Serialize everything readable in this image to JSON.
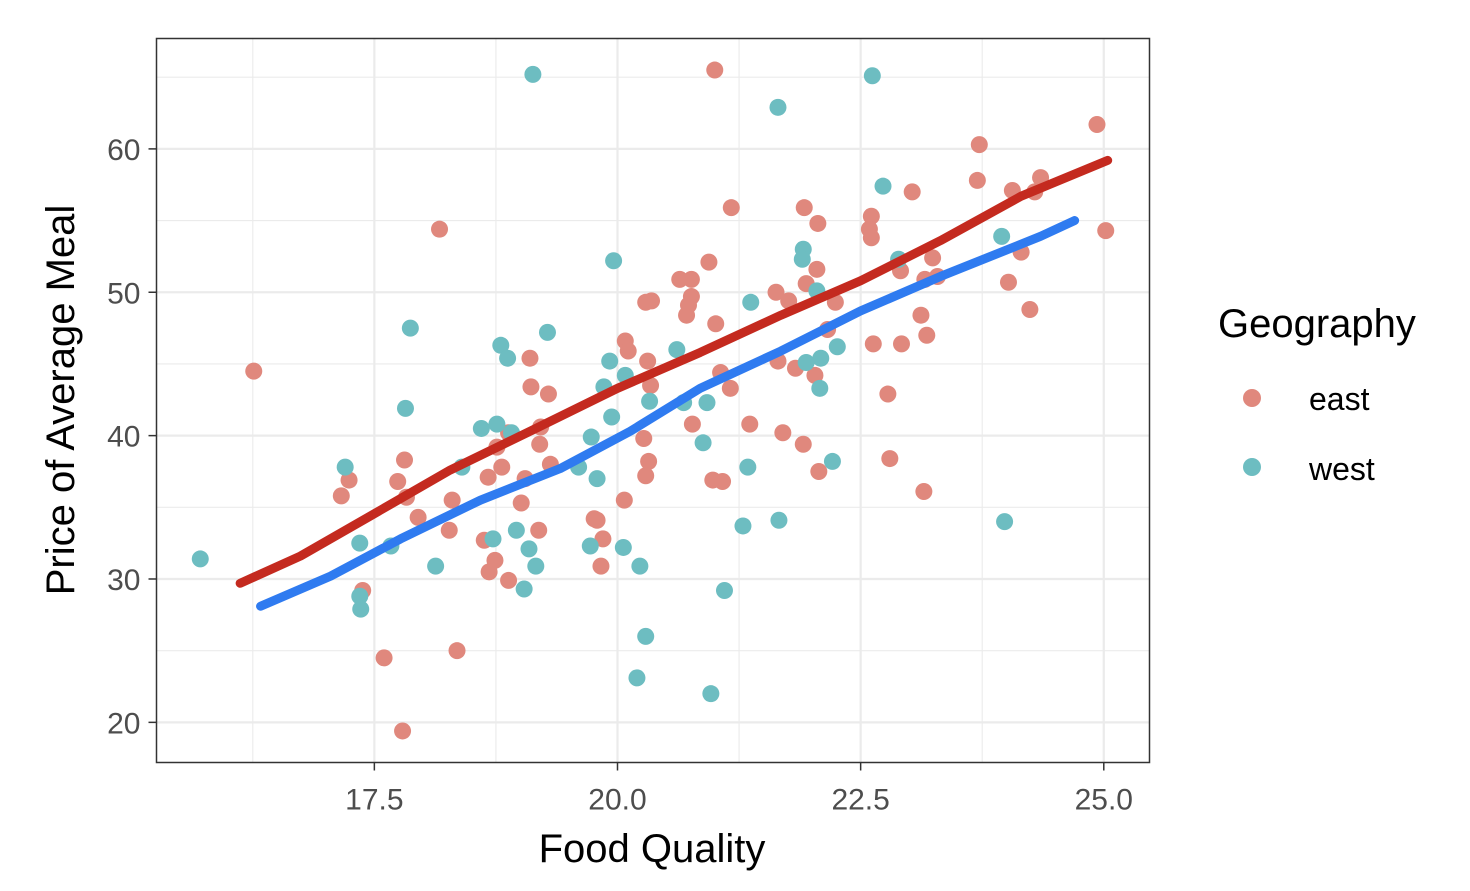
{
  "chart_data": {
    "type": "scatter",
    "xlabel": "Food Quality",
    "ylabel": "Price of Average Meal",
    "xlim": [
      15.26,
      25.47
    ],
    "ylim": [
      17.2,
      67.7
    ],
    "xticks": [
      17.5,
      20.0,
      22.5,
      25.0
    ],
    "xtick_labels": [
      "17.5",
      "20.0",
      "22.5",
      "25.0"
    ],
    "yticks": [
      20,
      30,
      40,
      50,
      60
    ],
    "ytick_labels": [
      "20",
      "30",
      "40",
      "50",
      "60"
    ],
    "grid": true,
    "legend": {
      "title": "Geography",
      "placement": "right",
      "entries": [
        "east",
        "west"
      ]
    },
    "series": [
      {
        "name": "east",
        "color": "#E0887D",
        "points": [
          [
            16.26,
            44.5
          ],
          [
            21.0,
            65.5
          ],
          [
            24.93,
            61.7
          ],
          [
            23.72,
            60.3
          ],
          [
            23.7,
            57.8
          ],
          [
            24.35,
            58.0
          ],
          [
            24.06,
            57.1
          ],
          [
            24.29,
            57.0
          ],
          [
            23.03,
            57.0
          ],
          [
            25.02,
            54.3
          ],
          [
            18.17,
            54.4
          ],
          [
            21.92,
            55.9
          ],
          [
            22.06,
            54.8
          ],
          [
            21.17,
            55.9
          ],
          [
            22.61,
            55.3
          ],
          [
            22.59,
            54.4
          ],
          [
            22.61,
            53.8
          ],
          [
            24.15,
            52.8
          ],
          [
            23.24,
            52.4
          ],
          [
            22.91,
            51.5
          ],
          [
            23.16,
            50.9
          ],
          [
            23.29,
            51.1
          ],
          [
            20.94,
            52.1
          ],
          [
            20.64,
            50.9
          ],
          [
            20.76,
            50.9
          ],
          [
            20.76,
            49.7
          ],
          [
            20.73,
            49.1
          ],
          [
            20.71,
            48.4
          ],
          [
            20.29,
            49.3
          ],
          [
            20.35,
            49.4
          ],
          [
            21.63,
            50.0
          ],
          [
            21.76,
            49.4
          ],
          [
            21.94,
            50.6
          ],
          [
            22.05,
            51.6
          ],
          [
            22.24,
            49.3
          ],
          [
            24.02,
            50.7
          ],
          [
            24.24,
            48.8
          ],
          [
            23.12,
            48.4
          ],
          [
            22.92,
            46.4
          ],
          [
            23.18,
            47.0
          ],
          [
            22.63,
            46.4
          ],
          [
            21.01,
            47.8
          ],
          [
            20.08,
            46.6
          ],
          [
            20.11,
            45.9
          ],
          [
            20.31,
            45.2
          ],
          [
            19.1,
            45.4
          ],
          [
            20.34,
            43.5
          ],
          [
            21.16,
            43.3
          ],
          [
            21.65,
            45.2
          ],
          [
            21.83,
            44.7
          ],
          [
            22.16,
            47.4
          ],
          [
            22.03,
            44.2
          ],
          [
            19.11,
            43.4
          ],
          [
            19.29,
            42.9
          ],
          [
            22.78,
            42.9
          ],
          [
            21.06,
            44.4
          ],
          [
            21.36,
            40.8
          ],
          [
            21.7,
            40.2
          ],
          [
            21.91,
            39.4
          ],
          [
            20.77,
            40.8
          ],
          [
            19.21,
            40.6
          ],
          [
            19.2,
            39.4
          ],
          [
            18.88,
            40.2
          ],
          [
            18.76,
            39.2
          ],
          [
            20.27,
            39.8
          ],
          [
            22.8,
            38.4
          ],
          [
            23.15,
            36.1
          ],
          [
            22.07,
            37.5
          ],
          [
            20.98,
            36.9
          ],
          [
            21.08,
            36.8
          ],
          [
            20.32,
            38.2
          ],
          [
            20.29,
            37.2
          ],
          [
            19.31,
            38.0
          ],
          [
            19.05,
            37.0
          ],
          [
            18.67,
            37.1
          ],
          [
            18.81,
            37.8
          ],
          [
            17.81,
            38.3
          ],
          [
            17.74,
            36.8
          ],
          [
            17.24,
            36.9
          ],
          [
            17.16,
            35.8
          ],
          [
            17.83,
            35.7
          ],
          [
            17.95,
            34.3
          ],
          [
            18.3,
            35.5
          ],
          [
            18.27,
            33.4
          ],
          [
            19.01,
            35.3
          ],
          [
            19.19,
            33.4
          ],
          [
            20.07,
            35.5
          ],
          [
            19.76,
            34.2
          ],
          [
            19.79,
            34.1
          ],
          [
            19.85,
            32.8
          ],
          [
            18.63,
            32.7
          ],
          [
            18.74,
            31.3
          ],
          [
            18.68,
            30.5
          ],
          [
            18.88,
            29.9
          ],
          [
            19.83,
            30.9
          ],
          [
            17.38,
            29.2
          ],
          [
            17.6,
            24.5
          ],
          [
            18.35,
            25.0
          ],
          [
            17.79,
            19.4
          ]
        ]
      },
      {
        "name": "west",
        "color": "#6DBDC1",
        "points": [
          [
            15.71,
            31.4
          ],
          [
            19.13,
            65.2
          ],
          [
            22.62,
            65.1
          ],
          [
            21.65,
            62.9
          ],
          [
            22.73,
            57.4
          ],
          [
            23.95,
            53.9
          ],
          [
            19.96,
            52.2
          ],
          [
            21.91,
            53.0
          ],
          [
            21.9,
            52.3
          ],
          [
            22.89,
            52.3
          ],
          [
            22.05,
            50.1
          ],
          [
            21.37,
            49.3
          ],
          [
            17.87,
            47.5
          ],
          [
            19.28,
            47.2
          ],
          [
            18.8,
            46.3
          ],
          [
            18.87,
            45.4
          ],
          [
            20.61,
            46.0
          ],
          [
            22.26,
            46.2
          ],
          [
            22.09,
            45.4
          ],
          [
            21.94,
            45.1
          ],
          [
            22.08,
            43.3
          ],
          [
            19.92,
            45.2
          ],
          [
            19.86,
            43.4
          ],
          [
            20.08,
            44.2
          ],
          [
            20.33,
            42.4
          ],
          [
            20.68,
            42.3
          ],
          [
            20.92,
            42.3
          ],
          [
            19.94,
            41.3
          ],
          [
            17.82,
            41.9
          ],
          [
            18.6,
            40.5
          ],
          [
            18.76,
            40.8
          ],
          [
            18.91,
            40.2
          ],
          [
            19.73,
            39.9
          ],
          [
            20.88,
            39.5
          ],
          [
            18.4,
            37.8
          ],
          [
            17.2,
            37.8
          ],
          [
            19.6,
            37.8
          ],
          [
            19.79,
            37.0
          ],
          [
            21.34,
            37.8
          ],
          [
            22.21,
            38.2
          ],
          [
            17.35,
            32.5
          ],
          [
            17.67,
            32.3
          ],
          [
            18.72,
            32.8
          ],
          [
            18.96,
            33.4
          ],
          [
            19.09,
            32.1
          ],
          [
            19.16,
            30.9
          ],
          [
            19.72,
            32.3
          ],
          [
            20.06,
            32.2
          ],
          [
            20.23,
            30.9
          ],
          [
            18.13,
            30.9
          ],
          [
            21.29,
            33.7
          ],
          [
            21.66,
            34.1
          ],
          [
            23.98,
            34.0
          ],
          [
            17.35,
            28.8
          ],
          [
            17.36,
            27.9
          ],
          [
            19.04,
            29.3
          ],
          [
            21.1,
            29.2
          ],
          [
            20.29,
            26.0
          ],
          [
            20.2,
            23.1
          ],
          [
            20.96,
            22.0
          ]
        ]
      }
    ],
    "trend_lines": [
      {
        "name": "east",
        "color": "#C42A1F",
        "points": [
          [
            16.12,
            29.7
          ],
          [
            16.74,
            31.6
          ],
          [
            17.46,
            34.4
          ],
          [
            18.28,
            37.6
          ],
          [
            19.1,
            40.3
          ],
          [
            20.0,
            43.3
          ],
          [
            20.85,
            45.8
          ],
          [
            21.68,
            48.4
          ],
          [
            22.5,
            50.8
          ],
          [
            23.32,
            53.6
          ],
          [
            24.15,
            56.7
          ],
          [
            25.04,
            59.2
          ]
        ]
      },
      {
        "name": "west",
        "color": "#2F7BF0",
        "points": [
          [
            16.33,
            28.1
          ],
          [
            17.05,
            30.2
          ],
          [
            17.77,
            32.8
          ],
          [
            18.59,
            35.5
          ],
          [
            19.41,
            37.7
          ],
          [
            20.13,
            40.3
          ],
          [
            20.85,
            43.3
          ],
          [
            21.68,
            45.9
          ],
          [
            22.5,
            48.7
          ],
          [
            23.32,
            51.1
          ],
          [
            24.35,
            53.9
          ],
          [
            24.7,
            55.0
          ]
        ]
      }
    ]
  }
}
